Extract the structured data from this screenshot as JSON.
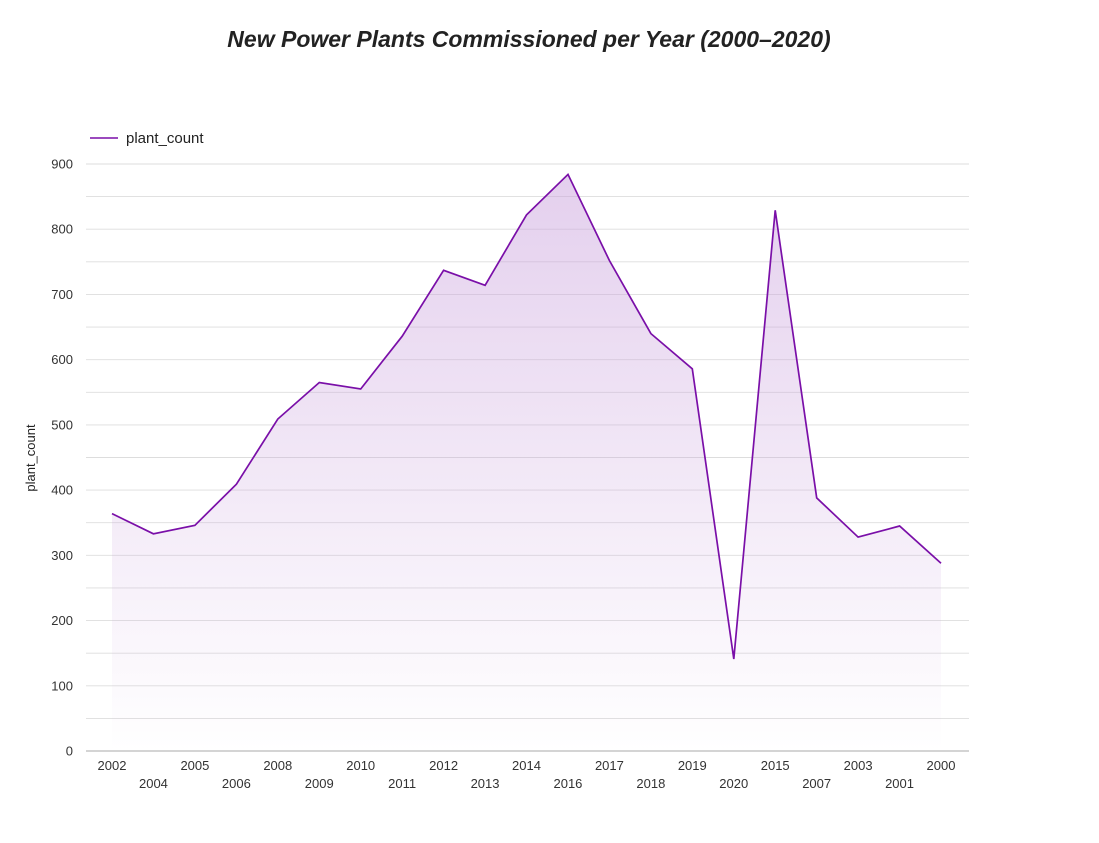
{
  "chart_data": {
    "type": "area",
    "title": "New Power Plants Commissioned per Year (2000–2020)",
    "xlabel": "",
    "ylabel": "plant_count",
    "ylim": [
      0,
      900
    ],
    "yticks": [
      0,
      100,
      200,
      300,
      400,
      500,
      600,
      700,
      800,
      900
    ],
    "grid": true,
    "legend_position": "top-left",
    "colors": {
      "line": "#7a0fa8",
      "fill": "#c9a0dc",
      "grid": "#dddddd",
      "axis": "#bbbbbb"
    },
    "categories": [
      "2002",
      "2004",
      "2005",
      "2006",
      "2008",
      "2009",
      "2010",
      "2011",
      "2012",
      "2013",
      "2014",
      "2016",
      "2017",
      "2018",
      "2019",
      "2020",
      "2015",
      "2007",
      "2003",
      "2001",
      "2000"
    ],
    "series": [
      {
        "name": "plant_count",
        "values": [
          364,
          333,
          346,
          409,
          509,
          565,
          555,
          636,
          737,
          714,
          822,
          884,
          752,
          640,
          586,
          141,
          829,
          388,
          328,
          345,
          288
        ]
      }
    ]
  }
}
